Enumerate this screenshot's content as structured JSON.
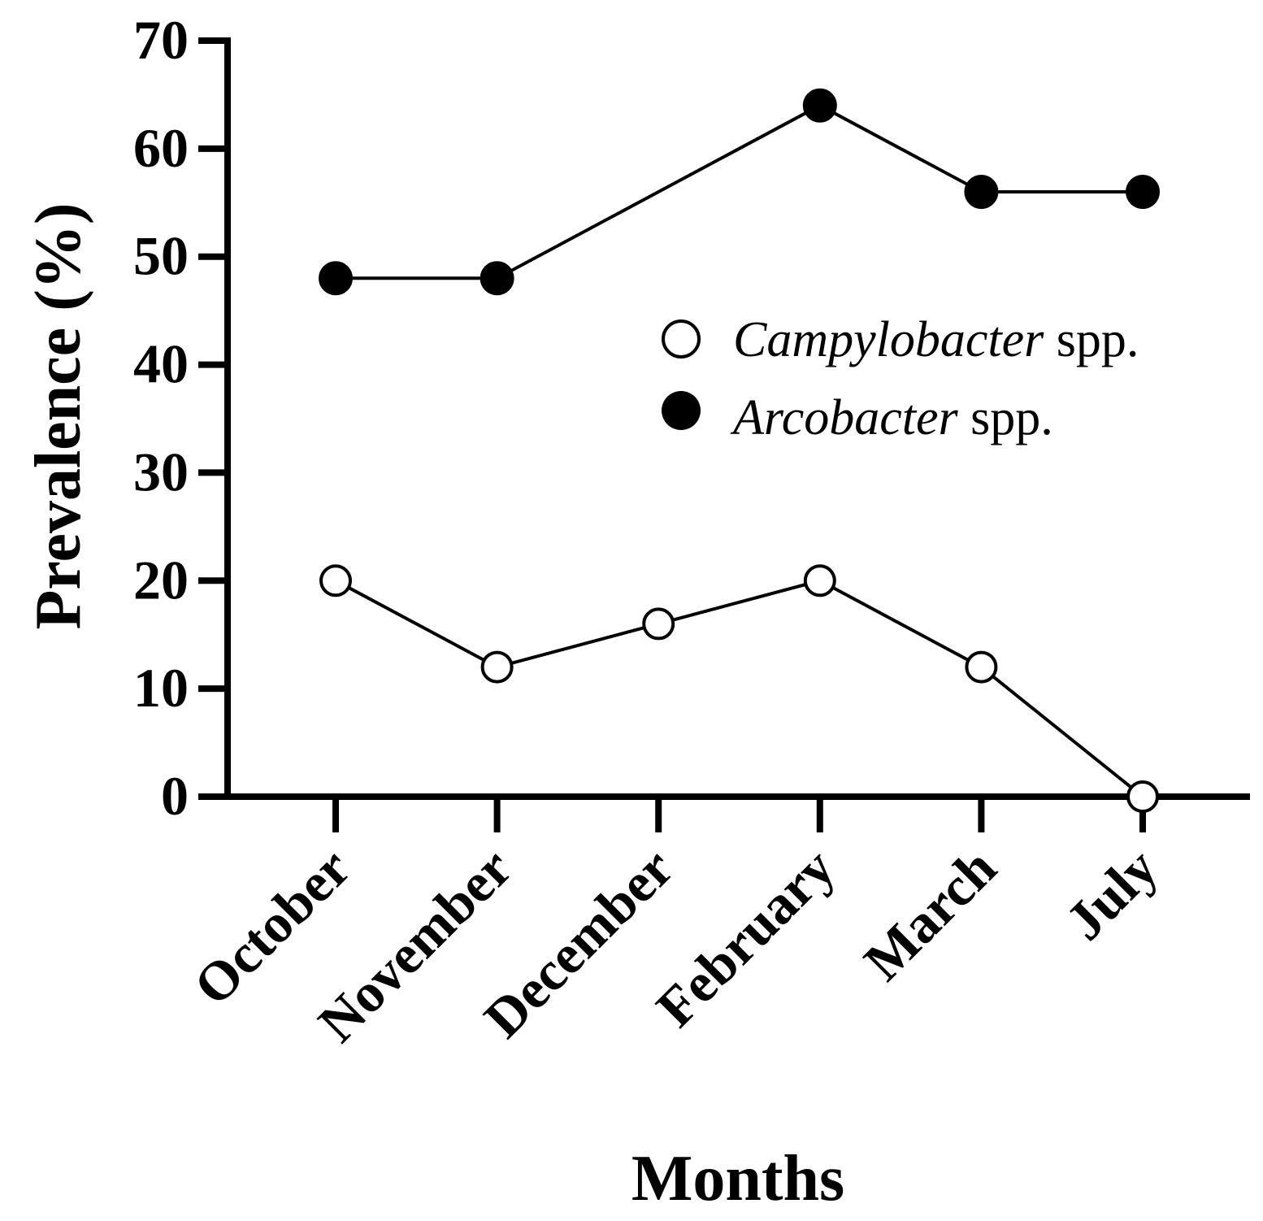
{
  "chart_data": {
    "type": "line",
    "categories": [
      "October",
      "November",
      "December",
      "February",
      "March",
      "July"
    ],
    "series": [
      {
        "name_italic": "Campylobacter",
        "name_suffix": " spp.",
        "marker": "open-circle",
        "values": [
          20,
          12,
          16,
          20,
          12,
          0
        ]
      },
      {
        "name_italic": "Arcobacter",
        "name_suffix": " spp.",
        "marker": "filled-circle",
        "values": [
          48,
          48,
          null,
          64,
          56,
          56
        ]
      }
    ],
    "xlabel": "Months",
    "ylabel": "Prevalence (%)",
    "ylim": [
      0,
      70
    ],
    "yticks": [
      0,
      10,
      20,
      30,
      40,
      50,
      60,
      70
    ],
    "grid": false,
    "legend_position": "right"
  }
}
